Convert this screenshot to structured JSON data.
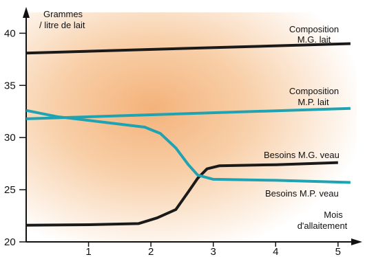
{
  "chart_data": {
    "type": "line",
    "ylabel": [
      "Grammes",
      "/ litre de lait"
    ],
    "xlabel": [
      "Mois",
      "d'allaitement"
    ],
    "xlim": [
      0,
      5.3
    ],
    "ylim": [
      20,
      42
    ],
    "xticks": [
      1,
      2,
      3,
      4,
      5
    ],
    "yticks": [
      20,
      25,
      30,
      35,
      40
    ],
    "grid": false,
    "background_gradient": {
      "center": "#f4b27a",
      "edge": "#ffffff"
    },
    "series": [
      {
        "key": "mg_lait",
        "name": [
          "Composition",
          "M.G. lait"
        ],
        "color": "#1a1a1a",
        "x": [
          0,
          5.2
        ],
        "y": [
          38.1,
          39.0
        ]
      },
      {
        "key": "mp_lait",
        "name": [
          "Composition",
          "M.P. lait"
        ],
        "color": "#1fa3b2",
        "x": [
          0,
          5.2
        ],
        "y": [
          31.8,
          32.8
        ]
      },
      {
        "key": "besoins_mg",
        "name": [
          "Besoins M.G. veau"
        ],
        "color": "#1a1a1a",
        "x": [
          0,
          1.0,
          1.8,
          2.1,
          2.4,
          2.6,
          2.75,
          2.9,
          3.1,
          4.0,
          5.0
        ],
        "y": [
          21.6,
          21.65,
          21.75,
          22.3,
          23.1,
          24.8,
          26.1,
          27.0,
          27.3,
          27.4,
          27.6
        ]
      },
      {
        "key": "besoins_mp",
        "name": [
          "Besoins M.P. veau"
        ],
        "color": "#1fa3b2",
        "x": [
          0,
          0.5,
          1.2,
          1.9,
          2.15,
          2.4,
          2.6,
          2.75,
          3.0,
          4.0,
          5.2
        ],
        "y": [
          32.6,
          32.0,
          31.5,
          31.0,
          30.4,
          29.0,
          27.4,
          26.4,
          26.0,
          25.9,
          25.7
        ]
      }
    ]
  }
}
